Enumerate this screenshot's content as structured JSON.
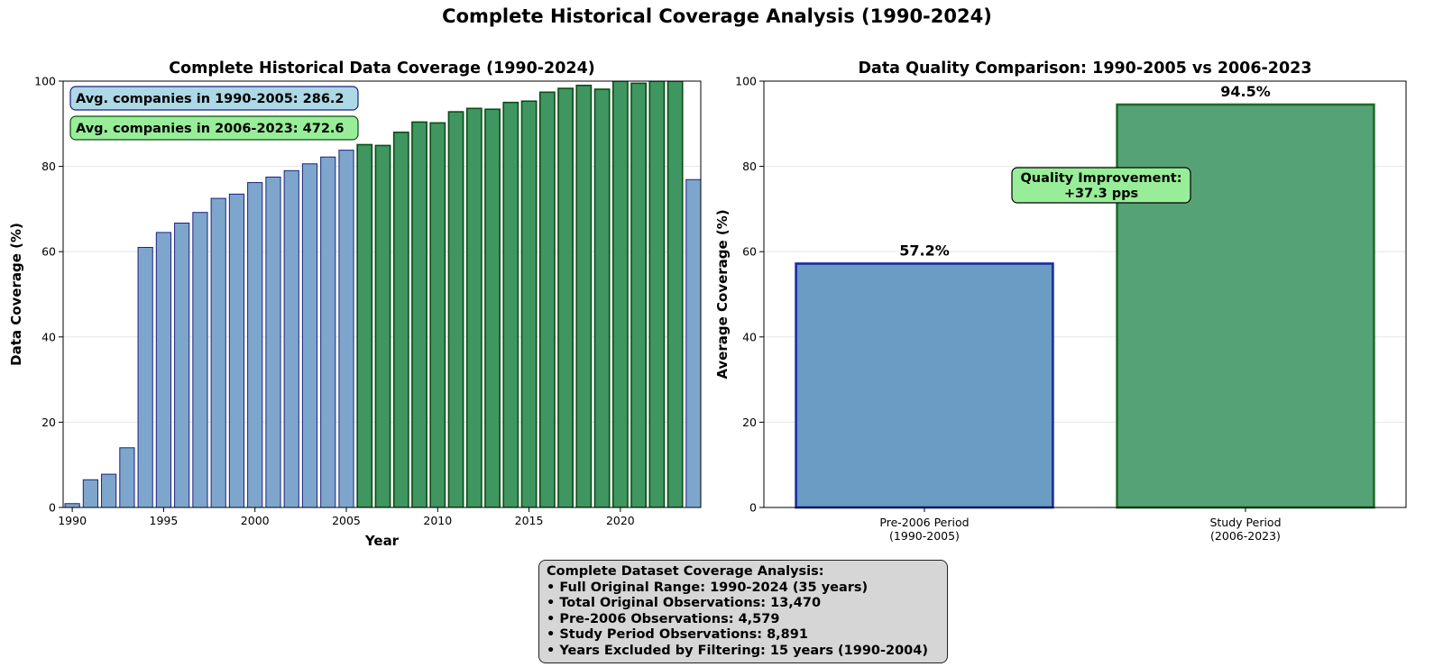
{
  "suptitle": "Complete Historical Coverage Analysis (1990-2024)",
  "colors": {
    "pre_fill": "#7ea6cc",
    "pre_edge": "#1a237e",
    "study_fill": "#3f9660",
    "study_edge": "#0b4d16",
    "bar2_pre_fill": "#6a9cc4",
    "bar2_pre_edge": "#1a2ca0",
    "bar2_study_fill": "#56a277",
    "bar2_study_edge": "#1e6b2a",
    "box_blue": "#add8e6",
    "box_green": "#98ee98",
    "box_gray": "#d6d6d6"
  },
  "chart_data": [
    {
      "type": "bar",
      "title": "Complete Historical Data Coverage (1990-2024)",
      "xlabel": "Year",
      "ylabel": "Data Coverage (%)",
      "ylim": [
        0,
        100
      ],
      "xlim": [
        1989.5,
        2024.4
      ],
      "yticks": [
        0,
        20,
        40,
        60,
        80,
        100
      ],
      "xticks": [
        1990,
        1995,
        2000,
        2005,
        2010,
        2015,
        2020
      ],
      "grid": "y",
      "categories": [
        1990,
        1991,
        1992,
        1993,
        1994,
        1995,
        1996,
        1997,
        1998,
        1999,
        2000,
        2001,
        2002,
        2003,
        2004,
        2005,
        2006,
        2007,
        2008,
        2009,
        2010,
        2011,
        2012,
        2013,
        2014,
        2015,
        2016,
        2017,
        2018,
        2019,
        2020,
        2021,
        2022,
        2023,
        2024
      ],
      "values": [
        0.9,
        6.5,
        7.8,
        14.0,
        61.0,
        64.5,
        66.7,
        69.2,
        72.5,
        73.5,
        76.2,
        77.5,
        79.0,
        80.6,
        82.2,
        83.8,
        85.1,
        84.9,
        88.0,
        90.4,
        90.2,
        92.8,
        93.6,
        93.4,
        95.0,
        95.3,
        97.4,
        98.3,
        99.0,
        98.1,
        100,
        99.5,
        100,
        100,
        76.9
      ],
      "groups": [
        "pre",
        "pre",
        "pre",
        "pre",
        "pre",
        "pre",
        "pre",
        "pre",
        "pre",
        "pre",
        "pre",
        "pre",
        "pre",
        "pre",
        "pre",
        "pre",
        "study",
        "study",
        "study",
        "study",
        "study",
        "study",
        "study",
        "study",
        "study",
        "study",
        "study",
        "study",
        "study",
        "study",
        "study",
        "study",
        "study",
        "study",
        "pre"
      ],
      "annotations": [
        {
          "text": "Avg. companies in 1990-2005: 286.2",
          "style": "blue"
        },
        {
          "text": "Avg. companies in 2006-2023: 472.6",
          "style": "green"
        }
      ]
    },
    {
      "type": "bar",
      "title": "Data Quality Comparison: 1990-2005 vs 2006-2023",
      "xlabel": "",
      "ylabel": "Average Coverage (%)",
      "ylim": [
        0,
        100
      ],
      "yticks": [
        0,
        20,
        40,
        60,
        80,
        100
      ],
      "grid": "y",
      "categories": [
        [
          "Pre-2006 Period",
          "(1990-2005)"
        ],
        [
          "Study Period",
          "(2006-2023)"
        ]
      ],
      "values": [
        57.2,
        94.5
      ],
      "data_labels": [
        "57.2%",
        "94.5%"
      ],
      "annotation": {
        "lines": [
          "Quality Improvement:",
          "+37.3 pps"
        ]
      }
    }
  ],
  "summary": {
    "lines": [
      "Complete Dataset Coverage Analysis:",
      "• Full Original Range: 1990-2024 (35 years)",
      "• Total Original Observations: 13,470",
      "• Pre-2006 Observations: 4,579",
      "• Study Period Observations: 8,891",
      "• Years Excluded by Filtering: 15 years (1990-2004)"
    ]
  }
}
